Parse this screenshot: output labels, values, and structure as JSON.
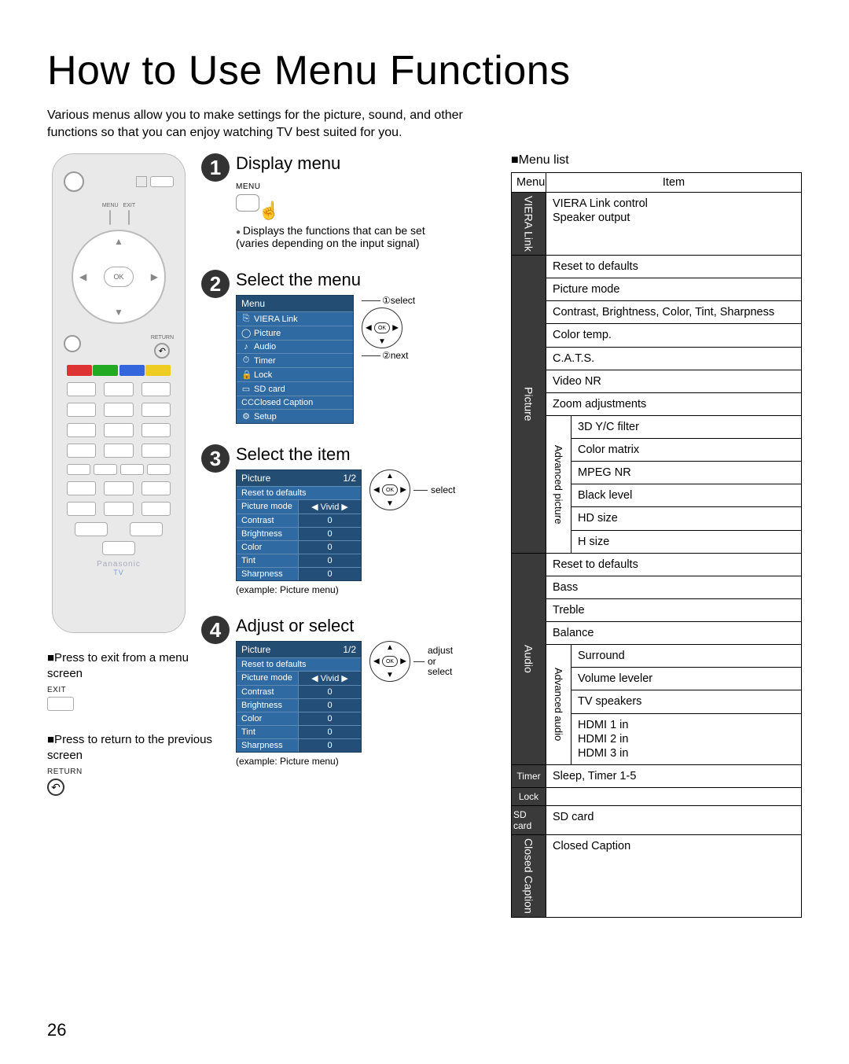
{
  "page": {
    "title": "How to Use Menu Functions",
    "intro": "Various menus allow you to make settings for the picture, sound, and other functions so that you can enjoy watching TV best suited for you.",
    "page_number": "26"
  },
  "remote": {
    "ok_label": "OK",
    "menu_label": "MENU",
    "exit_label": "EXIT",
    "return_label": "RETURN",
    "brand": "Panasonic",
    "sub_brand": "TV"
  },
  "hints": {
    "exit_text": "■Press to exit from a menu screen",
    "exit_btn_label": "EXIT",
    "return_text": "■Press to return to the previous screen",
    "return_btn_label": "RETURN"
  },
  "steps": {
    "s1": {
      "num": "1",
      "title": "Display menu",
      "btn_label": "MENU",
      "note": "Displays the functions that can be set (varies depending on the input signal)"
    },
    "s2": {
      "num": "2",
      "title": "Select the menu",
      "panel_head": "Menu",
      "items": [
        "VIERA Link",
        "Picture",
        "Audio",
        "Timer",
        "Lock",
        "SD card",
        "Closed Caption",
        "Setup"
      ],
      "side1": "①select",
      "side2": "②next"
    },
    "s3": {
      "num": "3",
      "title": "Select the item",
      "panel_head": "Picture",
      "page_ind": "1/2",
      "rows": [
        {
          "label": "Reset to defaults",
          "value": ""
        },
        {
          "label": "Picture mode",
          "value": "Vivid"
        },
        {
          "label": "Contrast",
          "value": "0"
        },
        {
          "label": "Brightness",
          "value": "0"
        },
        {
          "label": "Color",
          "value": "0"
        },
        {
          "label": "Tint",
          "value": "0"
        },
        {
          "label": "Sharpness",
          "value": "0"
        }
      ],
      "example": "(example: Picture menu)",
      "side": "select"
    },
    "s4": {
      "num": "4",
      "title": "Adjust or select",
      "panel_head": "Picture",
      "page_ind": "1/2",
      "rows": [
        {
          "label": "Reset to defaults",
          "value": ""
        },
        {
          "label": "Picture mode",
          "value": "Vivid"
        },
        {
          "label": "Contrast",
          "value": "0"
        },
        {
          "label": "Brightness",
          "value": "0"
        },
        {
          "label": "Color",
          "value": "0"
        },
        {
          "label": "Tint",
          "value": "0"
        },
        {
          "label": "Sharpness",
          "value": "0"
        }
      ],
      "example": "(example: Picture menu)",
      "side": "adjust\nor\nselect"
    }
  },
  "menu_list": {
    "title": "■Menu list",
    "head_menu": "Menu",
    "head_item": "Item",
    "sections": [
      {
        "cat": "VIERA Link",
        "cat_bg": "#3a3a3a",
        "items": [
          "VIERA Link control\nSpeaker output"
        ]
      },
      {
        "cat": "Picture",
        "cat_bg": "#3a3a3a",
        "plain": [
          "Reset to defaults",
          "Picture mode",
          "Contrast, Brightness, Color, Tint, Sharpness",
          "Color temp.",
          "C.A.T.S.",
          "Video NR",
          "Zoom adjustments"
        ],
        "sub": {
          "label": "Advanced picture",
          "items": [
            "3D Y/C filter",
            "Color matrix",
            "MPEG NR",
            "Black level",
            "HD size",
            "H size"
          ]
        }
      },
      {
        "cat": "Audio",
        "cat_bg": "#3a3a3a",
        "plain": [
          "Reset to defaults",
          "Bass",
          "Treble",
          "Balance"
        ],
        "sub": {
          "label": "Advanced audio",
          "items": [
            "Surround",
            "Volume leveler",
            "TV speakers",
            "HDMI 1 in\nHDMI 2 in\nHDMI 3 in"
          ]
        }
      },
      {
        "cat": "Timer",
        "cat_bg": "#3a3a3a",
        "items": [
          "Sleep, Timer 1-5"
        ]
      },
      {
        "cat": "Lock",
        "cat_bg": "#3a3a3a",
        "items": [
          " "
        ]
      },
      {
        "cat": "SD card",
        "cat_bg": "#3a3a3a",
        "items": [
          "SD card"
        ]
      },
      {
        "cat": "Closed Caption",
        "cat_bg": "#3a3a3a",
        "items": [
          "Closed Caption"
        ]
      }
    ]
  },
  "colors": {
    "panel_bg": "#2f6aa3",
    "panel_head": "#244d74",
    "badge": "#333333"
  }
}
